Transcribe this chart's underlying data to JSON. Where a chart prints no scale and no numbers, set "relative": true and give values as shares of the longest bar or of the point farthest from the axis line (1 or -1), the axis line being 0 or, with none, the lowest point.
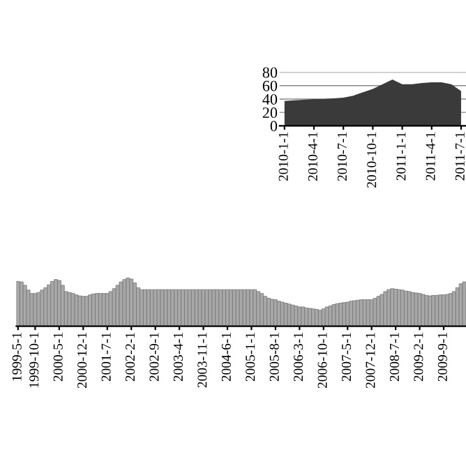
{
  "chart_data": [
    {
      "type": "area",
      "categories": [
        "2010-1-1",
        null,
        null,
        "2010-4-1",
        null,
        null,
        "2010-7-1",
        null,
        null,
        "2010-10-1",
        null,
        null,
        "2011-1-1",
        null,
        null,
        "2011-4-1",
        null,
        null,
        "2011-7-1"
      ],
      "series": [
        {
          "color": "#3a3a3a",
          "values": [
            37,
            38,
            39,
            40,
            40,
            41,
            42,
            45,
            50,
            55,
            62,
            69,
            62,
            62,
            64,
            65,
            65,
            62,
            52
          ]
        }
      ],
      "ylim": [
        0,
        80
      ],
      "yticks": [
        0,
        20,
        40,
        60,
        80
      ],
      "grid": "y"
    },
    {
      "type": "bar",
      "relative": true,
      "categories": [
        "1999-5-1",
        null,
        null,
        null,
        null,
        "1999-10-1",
        null,
        null,
        null,
        null,
        null,
        null,
        "2000-5-1",
        null,
        null,
        null,
        null,
        null,
        null,
        "2000-12-1",
        null,
        null,
        null,
        null,
        null,
        null,
        "2001-7-1",
        null,
        null,
        null,
        null,
        null,
        null,
        "2002-2-1",
        null,
        null,
        null,
        null,
        null,
        null,
        "2002-9-1",
        null,
        null,
        null,
        null,
        null,
        null,
        "2003-4-1",
        null,
        null,
        null,
        null,
        null,
        null,
        "2003-11-1",
        null,
        null,
        null,
        null,
        null,
        null,
        "2004-6-1",
        null,
        null,
        null,
        null,
        null,
        null,
        "2005-1-1",
        null,
        null,
        null,
        null,
        null,
        null,
        "2005-8-1",
        null,
        null,
        null,
        null,
        null,
        null,
        "2006-3-1",
        null,
        null,
        null,
        null,
        null,
        null,
        "2006-10-1",
        null,
        null,
        null,
        null,
        null,
        null,
        "2007-5-1",
        null,
        null,
        null,
        null,
        null,
        null,
        "2007-12-1",
        null,
        null,
        null,
        null,
        null,
        null,
        "2008-7-1",
        null,
        null,
        null,
        null,
        null,
        null,
        "2009-2-1",
        null,
        null,
        null,
        null,
        null,
        null,
        "2009-9-1",
        null,
        null,
        null,
        null,
        null,
        null
      ],
      "series": [
        {
          "color": "#a8a8a8",
          "values": [
            0.93,
            0.92,
            0.85,
            0.75,
            0.68,
            0.68,
            0.7,
            0.75,
            0.8,
            0.86,
            0.93,
            0.97,
            0.95,
            0.85,
            0.72,
            0.7,
            0.68,
            0.65,
            0.63,
            0.62,
            0.62,
            0.65,
            0.67,
            0.68,
            0.68,
            0.68,
            0.68,
            0.72,
            0.78,
            0.85,
            0.92,
            0.97,
            1.0,
            0.98,
            0.9,
            0.8,
            0.76,
            0.76,
            0.76,
            0.76,
            0.76,
            0.76,
            0.76,
            0.76,
            0.76,
            0.76,
            0.76,
            0.76,
            0.76,
            0.76,
            0.76,
            0.76,
            0.76,
            0.76,
            0.76,
            0.76,
            0.76,
            0.76,
            0.76,
            0.76,
            0.76,
            0.76,
            0.76,
            0.76,
            0.76,
            0.76,
            0.76,
            0.76,
            0.76,
            0.76,
            0.72,
            0.68,
            0.62,
            0.58,
            0.56,
            0.55,
            0.52,
            0.5,
            0.48,
            0.46,
            0.44,
            0.42,
            0.4,
            0.4,
            0.38,
            0.37,
            0.36,
            0.35,
            0.33,
            0.36,
            0.4,
            0.42,
            0.45,
            0.47,
            0.48,
            0.49,
            0.5,
            0.52,
            0.53,
            0.54,
            0.55,
            0.55,
            0.55,
            0.55,
            0.58,
            0.62,
            0.66,
            0.72,
            0.76,
            0.78,
            0.77,
            0.76,
            0.75,
            0.73,
            0.72,
            0.7,
            0.69,
            0.68,
            0.66,
            0.64,
            0.63,
            0.64,
            0.64,
            0.65,
            0.65,
            0.66,
            0.68,
            0.72,
            0.8,
            0.88,
            0.92
          ]
        }
      ]
    }
  ]
}
